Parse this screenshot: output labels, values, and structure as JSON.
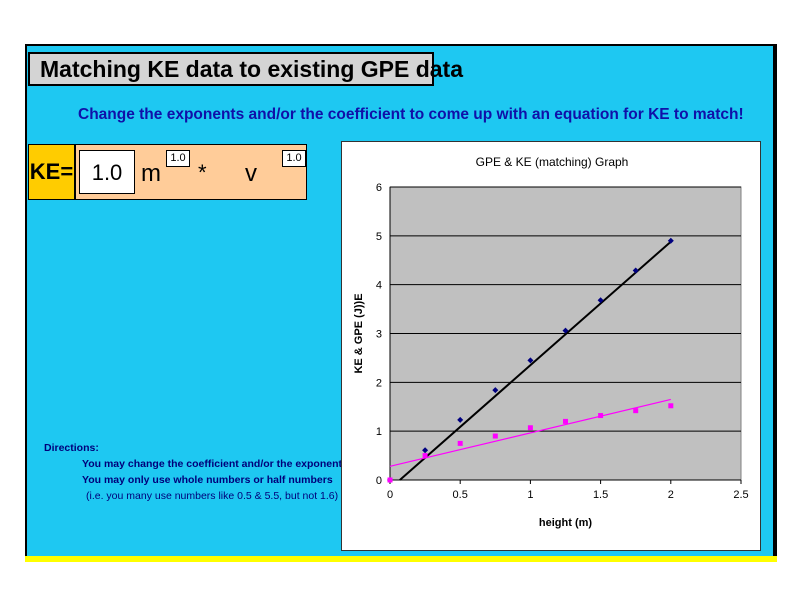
{
  "header": {
    "title": "Matching KE data to existing GPE data"
  },
  "instruction": "Change the exponents and/or the coefficient to come up with an equation for KE to match!",
  "equation": {
    "label": "KE=",
    "coefficient": "1.0",
    "var1": "m",
    "exp1": "1.0",
    "operator": "*",
    "var2": "v",
    "exp2": "1.0"
  },
  "directions": {
    "heading": "Directions:",
    "line1": "You may change the coefficient and/or the exponent",
    "line2": "You may only use whole numbers or half numbers",
    "line3": "(i.e. you many use numbers like 0.5 & 5.5, but not 1.6)"
  },
  "colors": {
    "background": "#1ec8f2",
    "accent": "#ffcc00",
    "series_gpe": "#000080",
    "series_ke": "#ff00ff"
  },
  "chart_data": {
    "type": "scatter",
    "title": "GPE & KE (matching) Graph",
    "xlabel": "height (m)",
    "ylabel": "KE & GPE (J))E",
    "xlim": [
      0,
      2.5
    ],
    "ylim": [
      0,
      6
    ],
    "xticks": [
      0,
      0.5,
      1,
      1.5,
      2,
      2.5
    ],
    "yticks": [
      0,
      1,
      2,
      3,
      4,
      5,
      6
    ],
    "grid": true,
    "legend": "none",
    "series": [
      {
        "marker": "diamond",
        "color": "#000080",
        "x": [
          0,
          0.25,
          0.5,
          0.75,
          1.0,
          1.25,
          1.5,
          1.75,
          2.0
        ],
        "y": [
          0,
          0.61,
          1.23,
          1.84,
          2.45,
          3.06,
          3.68,
          4.29,
          4.9
        ],
        "trendline": {
          "color": "#000000",
          "from": [
            0.07,
            0
          ],
          "to": [
            2.0,
            4.88
          ]
        }
      },
      {
        "marker": "square",
        "color": "#ff00ff",
        "x": [
          0,
          0.25,
          0.5,
          0.75,
          1.0,
          1.25,
          1.5,
          1.75,
          2.0
        ],
        "y": [
          0,
          0.5,
          0.75,
          0.9,
          1.07,
          1.2,
          1.32,
          1.42,
          1.52
        ],
        "trendline": {
          "color": "#ff00ff",
          "from": [
            0,
            0.28
          ],
          "to": [
            2.0,
            1.65
          ]
        }
      }
    ]
  }
}
